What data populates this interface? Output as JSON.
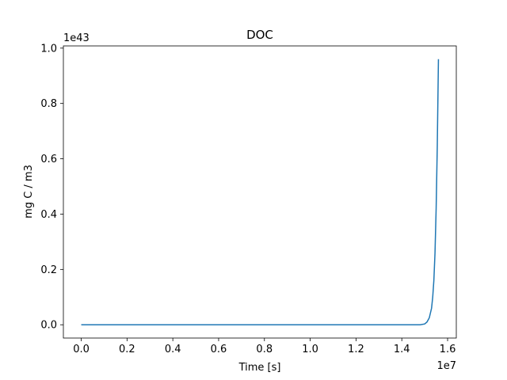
{
  "chart_data": {
    "type": "line",
    "title": "DOC",
    "xlabel": "Time [s]",
    "ylabel": "mg C / m3",
    "x_offset_label": "1e7",
    "y_offset_label": "1e43",
    "xlim": [
      -0.078,
      1.638
    ],
    "ylim": [
      -0.048,
      1.008
    ],
    "x_ticks": [
      0.0,
      0.2,
      0.4,
      0.6,
      0.8,
      1.0,
      1.2,
      1.4,
      1.6
    ],
    "x_tick_labels": [
      "0.0",
      "0.2",
      "0.4",
      "0.6",
      "0.8",
      "1.0",
      "1.2",
      "1.4",
      "1.6"
    ],
    "y_ticks": [
      0.0,
      0.2,
      0.4,
      0.6,
      0.8,
      1.0
    ],
    "y_tick_labels": [
      "0.0",
      "0.2",
      "0.4",
      "0.6",
      "0.8",
      "1.0"
    ],
    "grid": false,
    "series": [
      {
        "color": "#1f77b4",
        "x": [
          0.0,
          0.2,
          0.4,
          0.6,
          0.8,
          1.0,
          1.2,
          1.4,
          1.48,
          1.5,
          1.51,
          1.52,
          1.53,
          1.535,
          1.54,
          1.545,
          1.55,
          1.555,
          1.56
        ],
        "y": [
          0.0,
          0.0,
          0.0,
          0.0,
          0.0,
          0.0,
          0.0,
          0.0,
          0.0,
          0.003,
          0.01,
          0.025,
          0.06,
          0.1,
          0.16,
          0.26,
          0.42,
          0.65,
          0.96
        ]
      }
    ]
  }
}
